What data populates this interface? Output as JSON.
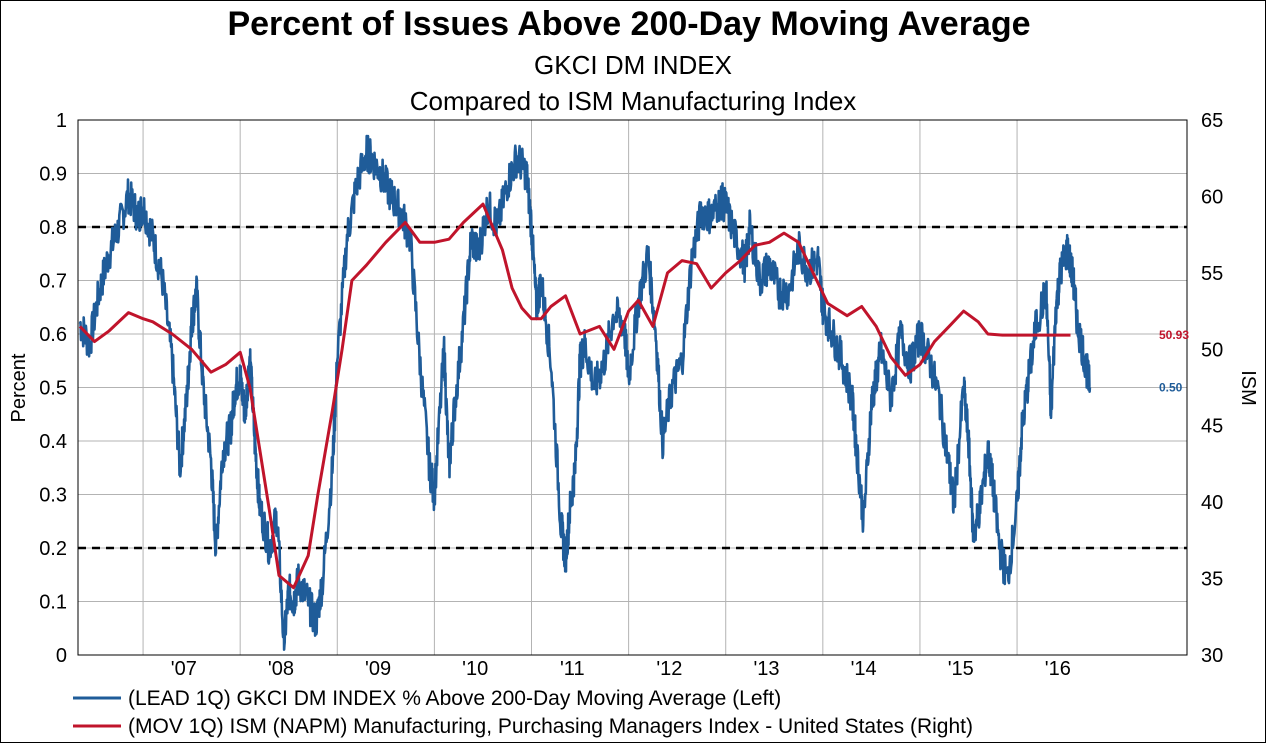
{
  "chart_data": {
    "type": "line",
    "title": "Percent of Issues Above 200-Day Moving Average",
    "subtitle": "GKCI DM INDEX",
    "subtitle2": "Compared to ISM Manufacturing Index",
    "ylabel_left": "Percent",
    "ylabel_right": "ISM",
    "ylim_left": [
      0,
      1
    ],
    "ylim_right": [
      30,
      65
    ],
    "yticks_left": [
      "0",
      "0.1",
      "0.2",
      "0.3",
      "0.4",
      "0.5",
      "0.6",
      "0.7",
      "0.8",
      "0.9",
      "1"
    ],
    "yticks_right": [
      "30",
      "35",
      "40",
      "45",
      "50",
      "55",
      "60",
      "65"
    ],
    "xlim": [
      2006.33,
      2017.75
    ],
    "x_ticks": [
      {
        "label": "'07",
        "x": 2007.0
      },
      {
        "label": "'08",
        "x": 2008.0
      },
      {
        "label": "'09",
        "x": 2009.0
      },
      {
        "label": "'10",
        "x": 2010.0
      },
      {
        "label": "'11",
        "x": 2011.0
      },
      {
        "label": "'12",
        "x": 2012.0
      },
      {
        "label": "'13",
        "x": 2013.0
      },
      {
        "label": "'14",
        "x": 2014.0
      },
      {
        "label": "'15",
        "x": 2015.0
      },
      {
        "label": "'16",
        "x": 2016.0
      }
    ],
    "reference_lines_left": [
      0.8,
      0.2
    ],
    "grid": true,
    "legend_position": "bottom",
    "series": [
      {
        "name": "(LEAD 1Q) GKCI DM INDEX % Above 200-Day Moving Average  (Left)",
        "axis": "left",
        "color": "#1f5c99",
        "end_label": "0.50",
        "x": [
          2006.35,
          2006.45,
          2006.55,
          2006.65,
          2006.75,
          2006.85,
          2006.95,
          2007.0,
          2007.1,
          2007.2,
          2007.3,
          2007.38,
          2007.45,
          2007.5,
          2007.55,
          2007.62,
          2007.7,
          2007.75,
          2007.82,
          2007.9,
          2007.95,
          2008.0,
          2008.05,
          2008.1,
          2008.15,
          2008.2,
          2008.3,
          2008.38,
          2008.45,
          2008.5,
          2008.55,
          2008.6,
          2008.7,
          2008.78,
          2008.85,
          2008.95,
          2009.0,
          2009.1,
          2009.2,
          2009.3,
          2009.35,
          2009.45,
          2009.55,
          2009.65,
          2009.75,
          2009.85,
          2009.95,
          2010.0,
          2010.1,
          2010.15,
          2010.2,
          2010.3,
          2010.38,
          2010.45,
          2010.55,
          2010.65,
          2010.75,
          2010.85,
          2010.95,
          2011.0,
          2011.05,
          2011.1,
          2011.2,
          2011.3,
          2011.35,
          2011.4,
          2011.45,
          2011.5,
          2011.55,
          2011.65,
          2011.75,
          2011.85,
          2011.95,
          2012.0,
          2012.1,
          2012.2,
          2012.28,
          2012.35,
          2012.45,
          2012.55,
          2012.65,
          2012.75,
          2012.85,
          2012.95,
          2013.0,
          2013.1,
          2013.2,
          2013.25,
          2013.35,
          2013.45,
          2013.55,
          2013.65,
          2013.75,
          2013.85,
          2013.95,
          2014.0,
          2014.1,
          2014.2,
          2014.3,
          2014.35,
          2014.42,
          2014.5,
          2014.55,
          2014.6,
          2014.7,
          2014.8,
          2014.9,
          2015.0,
          2015.1,
          2015.2,
          2015.3,
          2015.35,
          2015.45,
          2015.5,
          2015.55,
          2015.62,
          2015.7,
          2015.75,
          2015.82,
          2015.9,
          2016.0,
          2016.05,
          2016.12,
          2016.2,
          2016.3,
          2016.35,
          2016.4,
          2016.45,
          2016.52,
          2016.58,
          2016.62,
          2016.7,
          2016.75
        ],
        "values": [
          0.62,
          0.58,
          0.68,
          0.75,
          0.8,
          0.86,
          0.82,
          0.84,
          0.78,
          0.7,
          0.55,
          0.35,
          0.48,
          0.62,
          0.68,
          0.5,
          0.36,
          0.2,
          0.38,
          0.42,
          0.5,
          0.52,
          0.45,
          0.56,
          0.4,
          0.28,
          0.2,
          0.26,
          0.02,
          0.12,
          0.1,
          0.14,
          0.1,
          0.06,
          0.14,
          0.35,
          0.55,
          0.78,
          0.88,
          0.94,
          0.93,
          0.9,
          0.86,
          0.83,
          0.78,
          0.55,
          0.35,
          0.3,
          0.57,
          0.35,
          0.45,
          0.62,
          0.78,
          0.75,
          0.84,
          0.8,
          0.88,
          0.93,
          0.9,
          0.8,
          0.65,
          0.7,
          0.55,
          0.25,
          0.18,
          0.28,
          0.35,
          0.55,
          0.58,
          0.5,
          0.55,
          0.64,
          0.62,
          0.52,
          0.66,
          0.75,
          0.6,
          0.4,
          0.5,
          0.55,
          0.74,
          0.83,
          0.82,
          0.85,
          0.84,
          0.78,
          0.73,
          0.8,
          0.7,
          0.73,
          0.68,
          0.68,
          0.76,
          0.72,
          0.74,
          0.65,
          0.6,
          0.55,
          0.48,
          0.38,
          0.25,
          0.47,
          0.52,
          0.57,
          0.48,
          0.6,
          0.54,
          0.6,
          0.55,
          0.48,
          0.35,
          0.28,
          0.5,
          0.4,
          0.22,
          0.28,
          0.38,
          0.32,
          0.2,
          0.14,
          0.28,
          0.42,
          0.52,
          0.62,
          0.68,
          0.45,
          0.65,
          0.72,
          0.76,
          0.7,
          0.62,
          0.55,
          0.5
        ]
      },
      {
        "name": "(MOV 1Q) ISM (NAPM) Manufacturing, Purchasing Managers Index - United States  (Right)",
        "axis": "right",
        "color": "#c0142b",
        "end_label": "50.93",
        "x": [
          2006.35,
          2006.5,
          2006.65,
          2006.85,
          2007.0,
          2007.1,
          2007.3,
          2007.5,
          2007.7,
          2007.85,
          2008.0,
          2008.1,
          2008.2,
          2008.3,
          2008.4,
          2008.55,
          2008.7,
          2008.8,
          2008.95,
          2009.05,
          2009.15,
          2009.3,
          2009.5,
          2009.7,
          2009.85,
          2010.0,
          2010.15,
          2010.3,
          2010.5,
          2010.7,
          2010.8,
          2010.9,
          2011.0,
          2011.1,
          2011.2,
          2011.35,
          2011.5,
          2011.7,
          2011.85,
          2012.0,
          2012.1,
          2012.25,
          2012.4,
          2012.55,
          2012.7,
          2012.85,
          2013.0,
          2013.15,
          2013.3,
          2013.45,
          2013.6,
          2013.75,
          2013.9,
          2014.05,
          2014.25,
          2014.4,
          2014.55,
          2014.7,
          2014.85,
          2015.0,
          2015.15,
          2015.3,
          2015.45,
          2015.6,
          2015.7,
          2015.85,
          2016.0,
          2016.15,
          2016.3,
          2016.45,
          2016.55
        ],
        "values": [
          51.5,
          50.5,
          51.2,
          52.4,
          52.0,
          51.8,
          51.0,
          50.0,
          48.5,
          49.0,
          49.8,
          47.5,
          43.5,
          39.5,
          35.2,
          34.4,
          36.5,
          40.5,
          46.0,
          50.0,
          54.5,
          55.5,
          57.0,
          58.3,
          57.0,
          57.0,
          57.2,
          58.3,
          59.5,
          56.5,
          54.0,
          52.7,
          52.0,
          52.0,
          52.8,
          53.5,
          51.0,
          51.5,
          50.0,
          52.5,
          53.2,
          51.5,
          55.0,
          55.8,
          55.6,
          54.0,
          55.0,
          55.8,
          56.8,
          57.0,
          57.6,
          57.0,
          55.0,
          53.0,
          52.2,
          52.8,
          51.5,
          49.5,
          48.3,
          49.0,
          50.5,
          51.5,
          52.5,
          51.8,
          51.0,
          50.93,
          50.93,
          50.93,
          50.93,
          50.93,
          50.93
        ]
      }
    ]
  }
}
